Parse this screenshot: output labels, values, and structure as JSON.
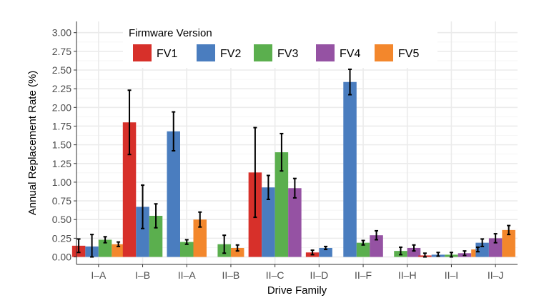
{
  "chart_data": {
    "type": "bar",
    "title": "",
    "xlabel": "Drive Family",
    "ylabel": "Annual Replacement Rate (%)",
    "ylim": [
      -0.1,
      3.15
    ],
    "yticks": [
      "0.00",
      "0.25",
      "0.50",
      "0.75",
      "1.00",
      "1.25",
      "1.50",
      "1.75",
      "2.00",
      "2.25",
      "2.50",
      "2.75",
      "3.00"
    ],
    "ytick_values": [
      0,
      0.25,
      0.5,
      0.75,
      1.0,
      1.25,
      1.5,
      1.75,
      2.0,
      2.25,
      2.5,
      2.75,
      3.0
    ],
    "categories": [
      "I–A",
      "I–B",
      "II–A",
      "II–B",
      "II–C",
      "II–D",
      "II–F",
      "II–H",
      "II–I",
      "II–J"
    ],
    "grid": true,
    "legend": {
      "title": "Firmware Version",
      "placement": "top-left, inside plot"
    },
    "series": [
      {
        "name": "FV1",
        "color": "#D7302A",
        "values": [
          0.15,
          1.8,
          null,
          null,
          1.13,
          0.06,
          null,
          null,
          0.02,
          null
        ],
        "err_low": [
          0.06,
          1.37,
          null,
          null,
          0.53,
          0.03,
          null,
          null,
          0.0,
          null
        ],
        "err_high": [
          0.24,
          2.23,
          null,
          null,
          1.73,
          0.09,
          null,
          null,
          0.05,
          null
        ]
      },
      {
        "name": "FV2",
        "color": "#4A7DBF",
        "values": [
          0.14,
          0.67,
          1.68,
          null,
          0.93,
          0.12,
          2.34,
          null,
          0.03,
          0.19
        ],
        "err_low": [
          0.0,
          0.38,
          1.42,
          null,
          0.77,
          0.1,
          2.17,
          null,
          0.01,
          0.14
        ],
        "err_high": [
          0.3,
          0.96,
          1.94,
          null,
          1.09,
          0.14,
          2.51,
          null,
          0.06,
          0.24
        ]
      },
      {
        "name": "FV3",
        "color": "#5BAF4E",
        "values": [
          0.23,
          0.55,
          0.2,
          0.17,
          1.4,
          null,
          0.19,
          0.08,
          0.03,
          null
        ],
        "err_low": [
          0.19,
          0.39,
          0.17,
          0.05,
          1.15,
          null,
          0.16,
          0.03,
          0.0,
          null
        ],
        "err_high": [
          0.27,
          0.71,
          0.23,
          0.29,
          1.65,
          null,
          0.22,
          0.13,
          0.06,
          null
        ]
      },
      {
        "name": "FV4",
        "color": "#9552A3",
        "values": [
          null,
          null,
          null,
          null,
          0.92,
          null,
          0.29,
          0.12,
          0.05,
          0.25
        ],
        "err_low": [
          null,
          null,
          null,
          null,
          0.79,
          null,
          0.23,
          0.08,
          0.02,
          0.19
        ],
        "err_high": [
          null,
          null,
          null,
          null,
          1.05,
          null,
          0.35,
          0.16,
          0.08,
          0.31
        ]
      },
      {
        "name": "FV5",
        "color": "#F3872C",
        "values": [
          0.17,
          null,
          0.5,
          0.12,
          null,
          null,
          null,
          null,
          0.1,
          0.36
        ],
        "err_low": [
          0.14,
          null,
          0.4,
          0.08,
          null,
          null,
          null,
          null,
          0.07,
          0.3
        ],
        "err_high": [
          0.2,
          null,
          0.6,
          0.16,
          null,
          null,
          null,
          null,
          0.13,
          0.42
        ]
      }
    ]
  }
}
